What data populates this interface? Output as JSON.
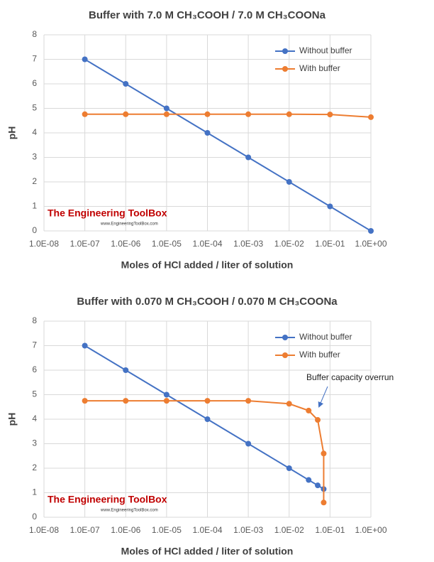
{
  "chart_data": [
    {
      "type": "line",
      "title": "Buffer with 7.0 M CH₃COOH / 7.0 M CH₃COONa",
      "x_label": "Moles of HCl added / liter of solution",
      "y_label": "pH",
      "xscale": "log",
      "xlim": [
        1e-08,
        1
      ],
      "ylim": [
        0,
        8
      ],
      "grid": true,
      "legend": "top-right",
      "xticks": [
        {
          "value": 1e-08,
          "label": "1.0E-08"
        },
        {
          "value": 1e-07,
          "label": "1.0E-07"
        },
        {
          "value": 1e-06,
          "label": "1.0E-06"
        },
        {
          "value": 1e-05,
          "label": "1.0E-05"
        },
        {
          "value": 0.0001,
          "label": "1.0E-04"
        },
        {
          "value": 0.001,
          "label": "1.0E-03"
        },
        {
          "value": 0.01,
          "label": "1.0E-02"
        },
        {
          "value": 0.1,
          "label": "1.0E-01"
        },
        {
          "value": 1,
          "label": "1.0E+00"
        }
      ],
      "yticks": [
        0,
        1,
        2,
        3,
        4,
        5,
        6,
        7,
        8
      ],
      "watermark": [
        "The Engineering ToolBox",
        "www.EngineeringToolBox.com"
      ],
      "series": [
        {
          "name": "Without buffer",
          "color": "#4472c4",
          "x": [
            1e-07,
            1e-06,
            1e-05,
            0.0001,
            0.001,
            0.01,
            0.1,
            1
          ],
          "values": [
            7,
            6,
            5,
            4,
            3,
            2,
            1,
            0
          ]
        },
        {
          "name": "With buffer",
          "color": "#ed7d31",
          "x": [
            1e-07,
            1e-06,
            1e-05,
            0.0001,
            0.001,
            0.01,
            0.1,
            1
          ],
          "values": [
            4.76,
            4.76,
            4.76,
            4.76,
            4.76,
            4.76,
            4.75,
            4.64
          ]
        }
      ]
    },
    {
      "type": "line",
      "title": "Buffer with 0.070 M CH₃COOH  / 0.070 M CH₃COONa",
      "x_label": "Moles of HCl added / liter of solution",
      "y_label": "pH",
      "xscale": "log",
      "xlim": [
        1e-08,
        1
      ],
      "ylim": [
        0,
        8
      ],
      "grid": true,
      "legend": "top-right",
      "xticks": [
        {
          "value": 1e-08,
          "label": "1.0E-08"
        },
        {
          "value": 1e-07,
          "label": "1.0E-07"
        },
        {
          "value": 1e-06,
          "label": "1.0E-06"
        },
        {
          "value": 1e-05,
          "label": "1.0E-05"
        },
        {
          "value": 0.0001,
          "label": "1.0E-04"
        },
        {
          "value": 0.001,
          "label": "1.0E-03"
        },
        {
          "value": 0.01,
          "label": "1.0E-02"
        },
        {
          "value": 0.1,
          "label": "1.0E-01"
        },
        {
          "value": 1,
          "label": "1.0E+00"
        }
      ],
      "yticks": [
        0,
        1,
        2,
        3,
        4,
        5,
        6,
        7,
        8
      ],
      "annotation": "Buffer capacity overrun",
      "watermark": [
        "The Engineering ToolBox",
        "www.EngineeringToolBox.com"
      ],
      "series": [
        {
          "name": "Without buffer",
          "color": "#4472c4",
          "x": [
            1e-07,
            1e-06,
            1e-05,
            0.0001,
            0.001,
            0.01,
            0.03,
            0.05,
            0.07
          ],
          "values": [
            7,
            6,
            5,
            4,
            3,
            2,
            1.52,
            1.3,
            1.15
          ]
        },
        {
          "name": "With buffer",
          "color": "#ed7d31",
          "x": [
            1e-07,
            1e-06,
            1e-05,
            0.0001,
            0.001,
            0.01,
            0.03,
            0.05,
            0.07,
            0.07
          ],
          "values": [
            4.75,
            4.75,
            4.75,
            4.75,
            4.75,
            4.63,
            4.35,
            3.97,
            2.6,
            0.6
          ]
        }
      ]
    }
  ]
}
